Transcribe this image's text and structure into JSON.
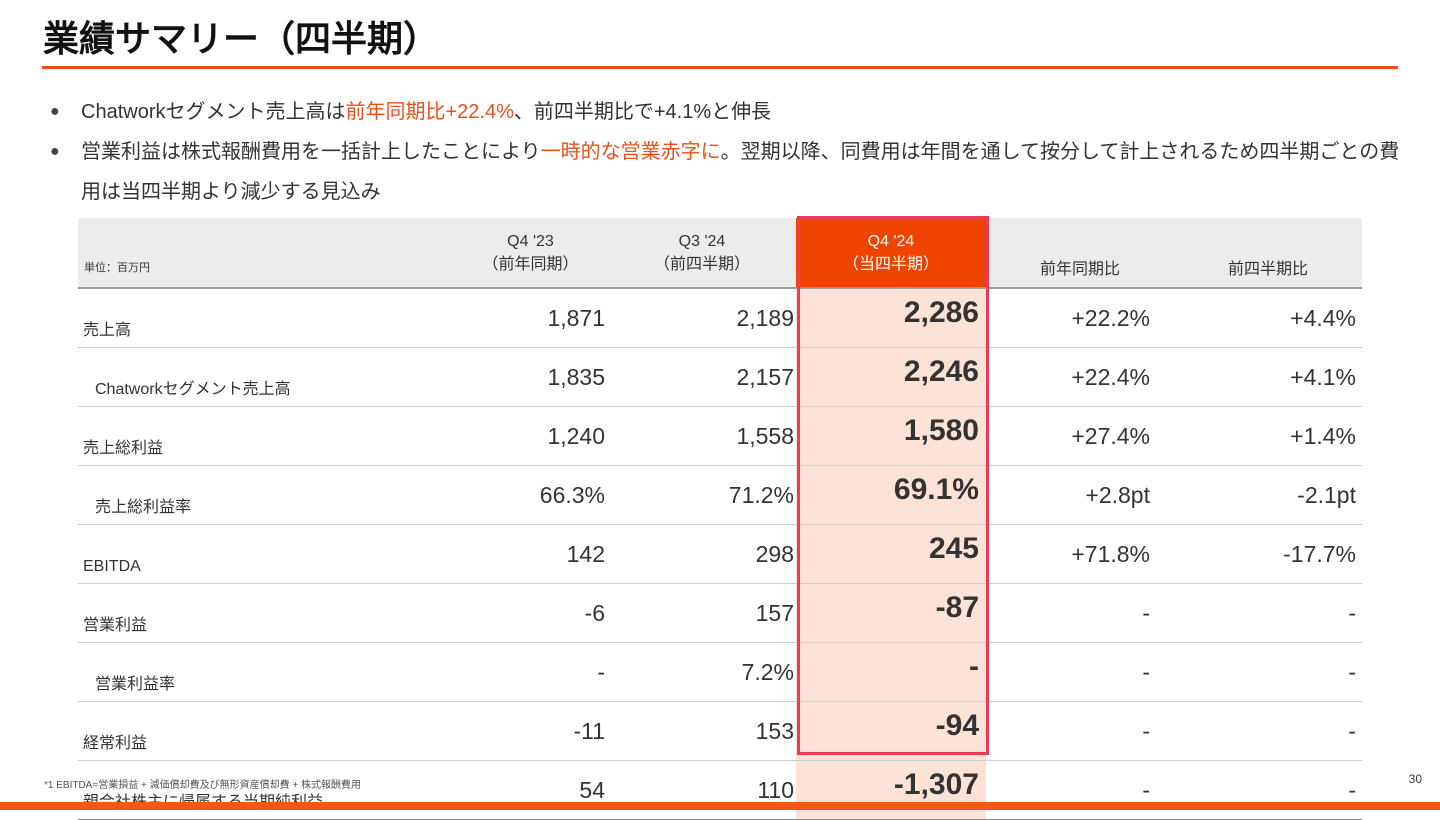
{
  "title": "業績サマリー（四半期）",
  "bullets": [
    {
      "pre": "Chatworkセグメント売上高は",
      "hl": "前年同期比+22.4%",
      "post": "、前四半期比で+4.1%と伸長"
    },
    {
      "pre": "営業利益は株式報酬費用を一括計上したことにより",
      "hl": "一時的な営業赤字に",
      "post": "。翌期以降、同費用は年間を通して按分して計上されるため四半期ごとの費用は当四半期より減少する見込み"
    }
  ],
  "table": {
    "unit": "単位：百万円",
    "headers": [
      {
        "period": "Q4 '23",
        "note": "（前年同期）"
      },
      {
        "period": "Q3 '24",
        "note": "（前四半期）"
      },
      {
        "period": "Q4 '24",
        "note": "（当四半期）"
      },
      {
        "label": "前年同期比"
      },
      {
        "label": "前四半期比"
      }
    ],
    "rows": [
      {
        "label": "売上高",
        "sub": false,
        "v": [
          "1,871",
          "2,189",
          "2,286",
          "+22.2%",
          "+4.4%"
        ]
      },
      {
        "label": "Chatworkセグメント売上高",
        "sub": true,
        "v": [
          "1,835",
          "2,157",
          "2,246",
          "+22.4%",
          "+4.1%"
        ]
      },
      {
        "label": "売上総利益",
        "sub": false,
        "v": [
          "1,240",
          "1,558",
          "1,580",
          "+27.4%",
          "+1.4%"
        ]
      },
      {
        "label": "売上総利益率",
        "sub": true,
        "v": [
          "66.3%",
          "71.2%",
          "69.1%",
          "+2.8pt",
          "-2.1pt"
        ]
      },
      {
        "label": "EBITDA",
        "sub": false,
        "v": [
          "142",
          "298",
          "245",
          "+71.8%",
          "-17.7%"
        ]
      },
      {
        "label": "営業利益",
        "sub": false,
        "v": [
          "-6",
          "157",
          "-87",
          "-",
          "-"
        ]
      },
      {
        "label": "営業利益率",
        "sub": true,
        "v": [
          "-",
          "7.2%",
          "-",
          "-",
          "-"
        ]
      },
      {
        "label": "経常利益",
        "sub": false,
        "v": [
          "-11",
          "153",
          "-94",
          "-",
          "-"
        ]
      },
      {
        "label": "親会社株主に帰属する当期純利益",
        "sub": false,
        "v": [
          "54",
          "110",
          "-1,307",
          "-",
          "-"
        ]
      }
    ]
  },
  "footnote": "*1 EBITDA=営業損益 + 減価償却費及び無形資産償却費 + 株式報酬費用",
  "page_number": "30",
  "colors": {
    "accent": "#e8501e",
    "highlight_fill": "#fde2d8",
    "highlight_border": "#e83d5a",
    "header_current": "#ef4300"
  }
}
